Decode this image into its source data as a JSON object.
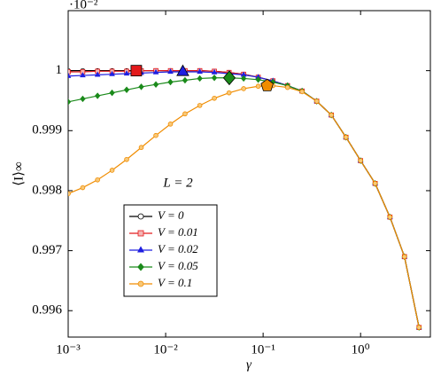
{
  "chart_data": {
    "type": "line",
    "x_label": "γ",
    "y_label": "⟨I⟩∞",
    "y_multiplier": "·10⁻²",
    "annotation": "L = 2",
    "log_x": true,
    "grid": false,
    "legend": "lower left",
    "x": [
      0.001,
      0.00141,
      0.002,
      0.00282,
      0.00398,
      0.00562,
      0.00794,
      0.0112,
      0.0158,
      0.0224,
      0.0316,
      0.0447,
      0.0631,
      0.0891,
      0.126,
      0.178,
      0.251,
      0.355,
      0.501,
      0.708,
      1,
      1.41,
      2,
      2.82,
      3.98
    ],
    "series": [
      {
        "name": "V = 0",
        "color": "#000000",
        "marker": "circle",
        "marker_fill": "#ffffff",
        "values": [
          1.0,
          1.0,
          1.0,
          1.0,
          1.0,
          1.0,
          1.0,
          1.0,
          1.0,
          1.0,
          0.99999,
          0.99997,
          0.99994,
          0.99989,
          0.99983,
          0.99975,
          0.99966,
          0.99949,
          0.99926,
          0.99889,
          0.9985,
          0.99812,
          0.99756,
          0.9969,
          0.99572
        ]
      },
      {
        "name": "V = 0.01",
        "color": "#e31a1c",
        "marker": "square",
        "marker_fill": "#f4b6b6",
        "values": [
          0.99998,
          0.99998,
          0.99999,
          0.99999,
          0.99999,
          1.0,
          1.0,
          1.0,
          1.0,
          1.0,
          0.99999,
          0.99997,
          0.99994,
          0.99989,
          0.99983,
          0.99975,
          0.99966,
          0.99949,
          0.99926,
          0.99889,
          0.9985,
          0.99812,
          0.99756,
          0.9969,
          0.99572
        ],
        "highlight": {
          "x": 0.005,
          "y": 1.0,
          "marker": "square",
          "fill": "#e31a1c"
        }
      },
      {
        "name": "V = 0.02",
        "color": "#1f1fe0",
        "marker": "triangle",
        "marker_fill": "#1f1fe0",
        "values": [
          0.99991,
          0.99992,
          0.99993,
          0.99994,
          0.99995,
          0.99996,
          0.99997,
          0.99998,
          0.99998,
          0.99998,
          0.99997,
          0.99995,
          0.99993,
          0.99989,
          0.99983,
          0.99975,
          0.99966,
          0.99949,
          0.99926,
          0.99889,
          0.9985,
          0.99812,
          0.99756,
          0.9969,
          0.99572
        ],
        "highlight": {
          "x": 0.015,
          "y": 0.99998,
          "marker": "triangle",
          "fill": "#1f1fe0"
        }
      },
      {
        "name": "V = 0.05",
        "color": "#1a8a1a",
        "marker": "diamond",
        "marker_fill": "#1a8a1a",
        "values": [
          0.99948,
          0.99953,
          0.99958,
          0.99963,
          0.99968,
          0.99973,
          0.99977,
          0.99981,
          0.99984,
          0.99987,
          0.99988,
          0.99988,
          0.99987,
          0.99985,
          0.99981,
          0.99975,
          0.99966,
          0.99949,
          0.99926,
          0.99889,
          0.9985,
          0.99812,
          0.99756,
          0.9969,
          0.99572
        ],
        "highlight": {
          "x": 0.045,
          "y": 0.99988,
          "marker": "diamond",
          "fill": "#1a8a1a"
        }
      },
      {
        "name": "V = 0.1",
        "color": "#f08c00",
        "marker": "circle",
        "marker_fill": "#f8c878",
        "values": [
          0.99795,
          0.99805,
          0.99818,
          0.99834,
          0.99852,
          0.99872,
          0.99892,
          0.99911,
          0.99928,
          0.99942,
          0.99954,
          0.99963,
          0.9997,
          0.99974,
          0.99975,
          0.99972,
          0.99965,
          0.99949,
          0.99926,
          0.99889,
          0.9985,
          0.99812,
          0.99756,
          0.9969,
          0.99572
        ],
        "highlight": {
          "x": 0.11,
          "y": 0.99975,
          "marker": "pentagon",
          "fill": "#f08c00"
        }
      }
    ],
    "xlim": [
      0.001,
      5.2
    ],
    "ylim": [
      0.99556,
      1.001
    ],
    "xticks": [
      {
        "value": 0.001,
        "label": "10⁻³"
      },
      {
        "value": 0.01,
        "label": "10⁻²"
      },
      {
        "value": 0.1,
        "label": "10⁻¹"
      },
      {
        "value": 1,
        "label": "10⁰"
      }
    ],
    "yticks": [
      0.996,
      0.997,
      0.998,
      0.999,
      1
    ]
  }
}
